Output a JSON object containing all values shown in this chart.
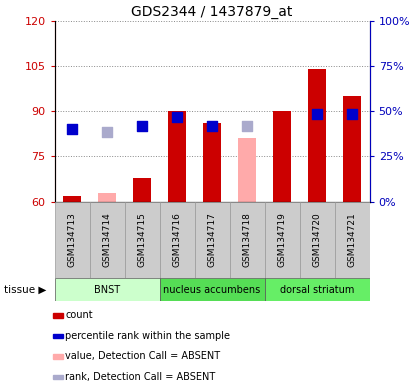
{
  "title": "GDS2344 / 1437879_at",
  "samples": [
    "GSM134713",
    "GSM134714",
    "GSM134715",
    "GSM134716",
    "GSM134717",
    "GSM134718",
    "GSM134719",
    "GSM134720",
    "GSM134721"
  ],
  "count_values": [
    62,
    null,
    68,
    90,
    86,
    null,
    90,
    104,
    95
  ],
  "count_absent": [
    null,
    63,
    null,
    null,
    null,
    81,
    null,
    null,
    null
  ],
  "rank_values": [
    84,
    null,
    85,
    88,
    85,
    null,
    null,
    89,
    89
  ],
  "rank_absent": [
    null,
    83,
    null,
    null,
    null,
    85,
    null,
    null,
    null
  ],
  "ylim_left": [
    60,
    120
  ],
  "ylim_right": [
    0,
    100
  ],
  "yticks_left": [
    60,
    75,
    90,
    105,
    120
  ],
  "yticks_right": [
    0,
    25,
    50,
    75,
    100
  ],
  "ytick_labels_left": [
    "60",
    "75",
    "90",
    "105",
    "120"
  ],
  "ytick_labels_right": [
    "0%",
    "25%",
    "50%",
    "75%",
    "100%"
  ],
  "bar_color": "#cc0000",
  "bar_absent_color": "#ffaaaa",
  "rank_color": "#0000cc",
  "rank_absent_color": "#aaaacc",
  "tissue_groups": [
    {
      "label": "BNST",
      "start": 0,
      "end": 3,
      "color": "#ccffcc"
    },
    {
      "label": "nucleus accumbens",
      "start": 3,
      "end": 6,
      "color": "#55dd55"
    },
    {
      "label": "dorsal striatum",
      "start": 6,
      "end": 9,
      "color": "#66ee66"
    }
  ],
  "legend_items": [
    {
      "label": "count",
      "color": "#cc0000"
    },
    {
      "label": "percentile rank within the sample",
      "color": "#0000cc"
    },
    {
      "label": "value, Detection Call = ABSENT",
      "color": "#ffaaaa"
    },
    {
      "label": "rank, Detection Call = ABSENT",
      "color": "#aaaacc"
    }
  ],
  "left_axis_color": "#cc0000",
  "right_axis_color": "#0000bb",
  "bar_width": 0.5,
  "dot_size": 55
}
